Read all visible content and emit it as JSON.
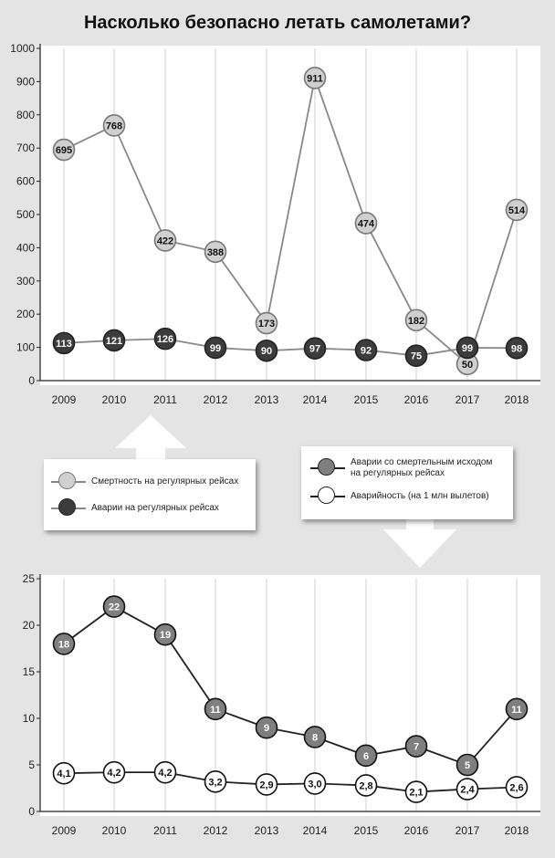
{
  "title": "Насколько безопасно летать самолетами?",
  "colors": {
    "background": "#e4e4e4",
    "fatalities_fill": "#d0d0d0",
    "fatalities_line": "#888888",
    "accidents_fill": "#3c3c3c",
    "fatal_accidents_fill": "#7f7f7f",
    "accident_rate_fill": "#ffffff",
    "dark_line": "#222222"
  },
  "legend_top": {
    "items": [
      {
        "label": "Смертность на регулярных рейсах"
      },
      {
        "label": "Аварии на регулярных рейсах"
      }
    ]
  },
  "legend_bottom": {
    "items": [
      {
        "label": "Аварии со смертельным исходом на регулярных рейсах"
      },
      {
        "label": "Аварийность (на 1 млн вылетов)"
      }
    ]
  },
  "chart_data": [
    {
      "type": "line",
      "title": "Насколько безопасно летать самолетами?",
      "categories": [
        "2009",
        "2010",
        "2011",
        "2012",
        "2013",
        "2014",
        "2015",
        "2016",
        "2017",
        "2018"
      ],
      "ylim": [
        0,
        1000
      ],
      "yticks": [
        "0",
        "100",
        "200",
        "300",
        "400",
        "500",
        "600",
        "700",
        "800",
        "900",
        "1000"
      ],
      "series": [
        {
          "name": "Смертность на регулярных рейсах",
          "values": [
            695,
            768,
            422,
            388,
            173,
            911,
            474,
            182,
            50,
            514
          ],
          "labels": [
            "695",
            "768",
            "422",
            "388",
            "173",
            "911",
            "474",
            "182",
            "50",
            "514"
          ]
        },
        {
          "name": "Аварии на регулярных рейсах",
          "values": [
            113,
            121,
            126,
            99,
            90,
            97,
            92,
            75,
            99,
            98
          ],
          "labels": [
            "113",
            "121",
            "126",
            "99",
            "90",
            "97",
            "92",
            "75",
            "99",
            "98"
          ]
        }
      ]
    },
    {
      "type": "line",
      "categories": [
        "2009",
        "2010",
        "2011",
        "2012",
        "2013",
        "2014",
        "2015",
        "2016",
        "2017",
        "2018"
      ],
      "ylim": [
        0,
        25
      ],
      "yticks": [
        "0",
        "5",
        "10",
        "15",
        "20",
        "25"
      ],
      "series": [
        {
          "name": "Аварии со смертельным исходом на регулярных рейсах",
          "values": [
            18,
            22,
            19,
            11,
            9,
            8,
            6,
            7,
            5,
            11
          ],
          "labels": [
            "18",
            "22",
            "19",
            "11",
            "9",
            "8",
            "6",
            "7",
            "5",
            "11"
          ]
        },
        {
          "name": "Аварийность (на 1 млн вылетов)",
          "values": [
            4.1,
            4.2,
            4.2,
            3.2,
            2.9,
            3.0,
            2.8,
            2.1,
            2.4,
            2.6
          ],
          "labels": [
            "4,1",
            "4,2",
            "4,2",
            "3,2",
            "2,9",
            "3,0",
            "2,8",
            "2,1",
            "2,4",
            "2,6"
          ]
        }
      ]
    }
  ]
}
